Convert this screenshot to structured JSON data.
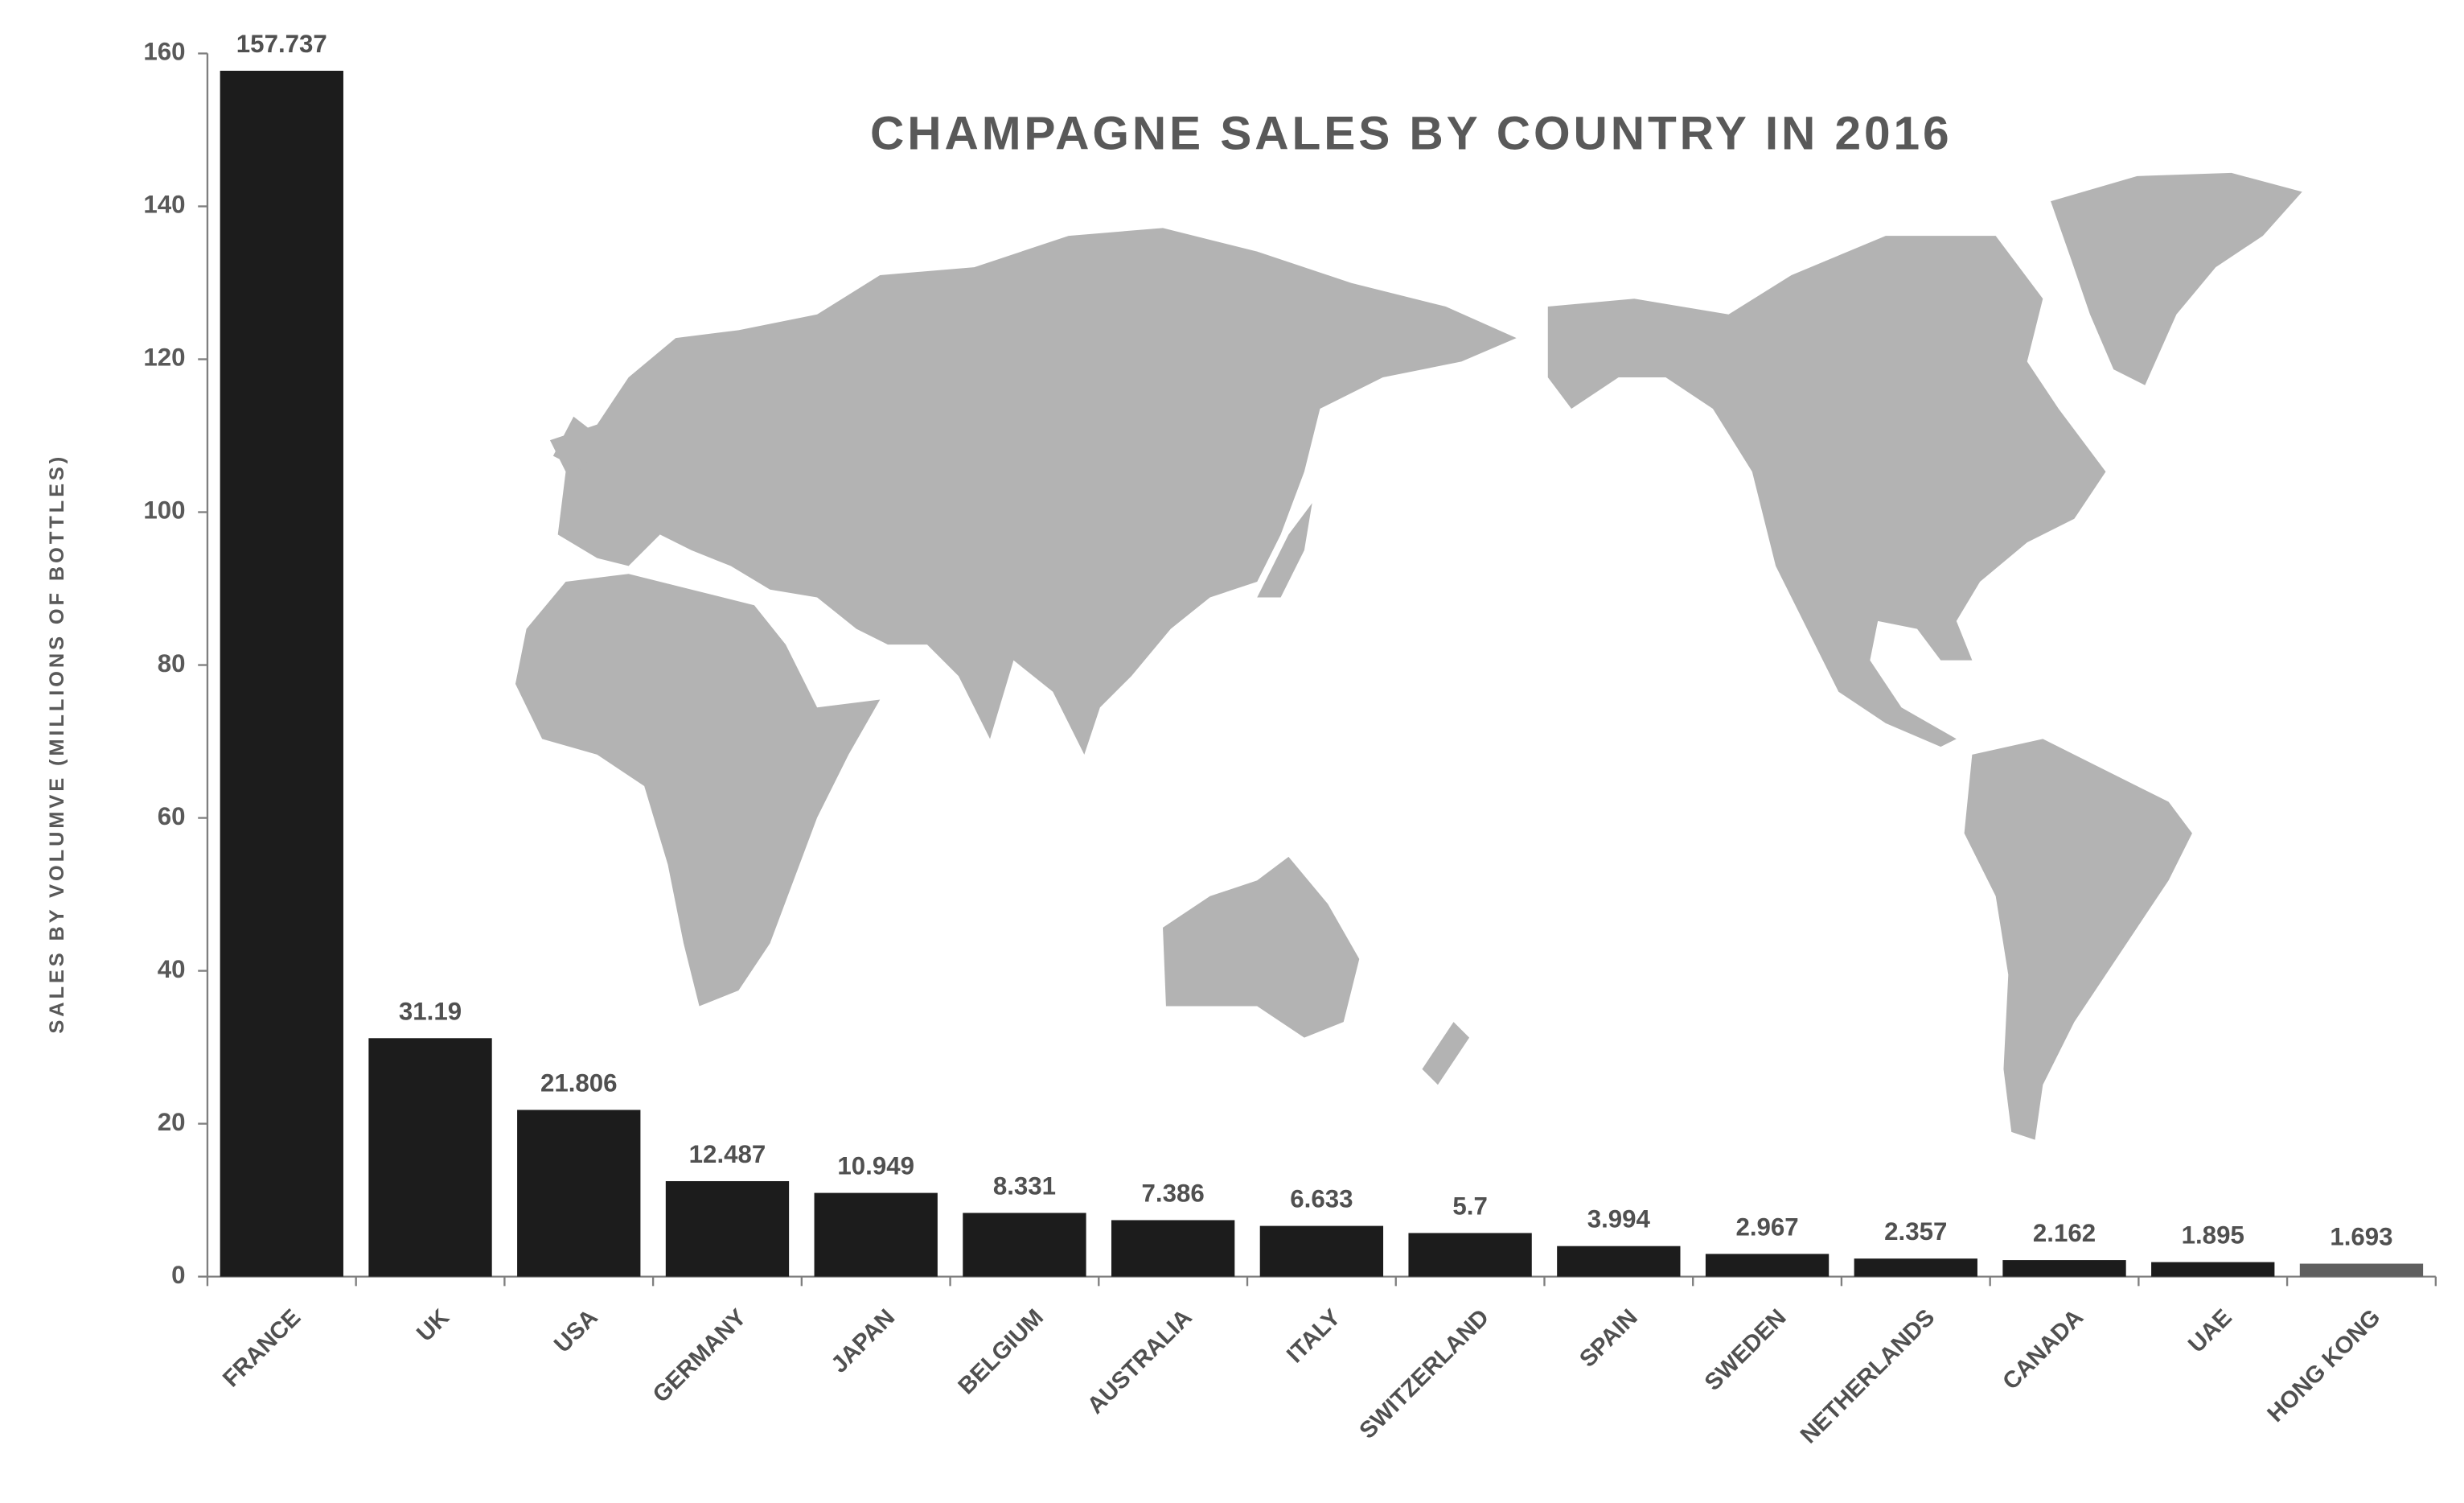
{
  "chart_data": {
    "type": "bar",
    "title": "CHAMPAGNE SALES BY COUNTRY IN 2016",
    "y_label": "SALES BY VOLUMVE (MILLIONS OF BOTTLES)",
    "categories": [
      "FRANCE",
      "UK",
      "USA",
      "GERMANY",
      "JAPAN",
      "BELGIUM",
      "AUSTRALIA",
      "ITALY",
      "SWITZERLAND",
      "SPAIN",
      "SWEDEN",
      "NETHERLANDS",
      "CANADA",
      "UAE",
      "HONG KONG"
    ],
    "values": [
      157.737,
      31.19,
      21.806,
      12.487,
      10.949,
      8.331,
      7.386,
      6.633,
      5.7,
      3.994,
      2.967,
      2.357,
      2.162,
      1.895,
      1.693
    ],
    "colors": [
      "#1c1c1c",
      "#1c1c1c",
      "#1c1c1c",
      "#1c1c1c",
      "#1c1c1c",
      "#1c1c1c",
      "#1c1c1c",
      "#1c1c1c",
      "#1c1c1c",
      "#1c1c1c",
      "#1c1c1c",
      "#1c1c1c",
      "#1c1c1c",
      "#1c1c1c",
      "#5f5f5f"
    ],
    "ylim": [
      0,
      160
    ],
    "yticks": [
      0,
      20,
      40,
      60,
      80,
      100,
      120,
      140,
      160
    ],
    "grid": false
  }
}
